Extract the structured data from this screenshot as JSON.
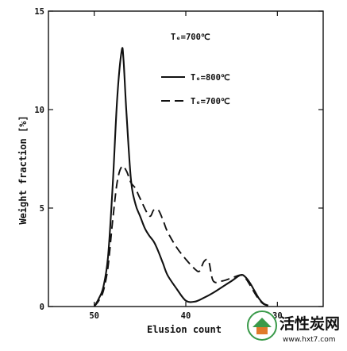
{
  "chart_data": {
    "type": "line",
    "xlabel": "Elusion count",
    "ylabel": "Weight fraction [%]",
    "xlim": [
      55,
      25
    ],
    "ylim": [
      0,
      15
    ],
    "x_ticks": [
      50,
      40,
      30
    ],
    "y_ticks": [
      0,
      5,
      10,
      15
    ],
    "annotation": "Tₑ=700℃",
    "grid": false,
    "legend_position": "top-right",
    "series": [
      {
        "name": "Tₑ=800℃",
        "style": "solid",
        "x": [
          50,
          49.5,
          49,
          48.5,
          48,
          47.5,
          47,
          46.8,
          46.5,
          46,
          45.5,
          45,
          44.5,
          44,
          43.5,
          43,
          42.5,
          42,
          41,
          40,
          39,
          38,
          37,
          36,
          35,
          34,
          33.5,
          33,
          32.5,
          32,
          31.5,
          31
        ],
        "y": [
          0,
          0.4,
          1,
          2.5,
          6,
          10.5,
          13,
          12.5,
          10,
          6.5,
          5.2,
          4.6,
          4.0,
          3.6,
          3.3,
          2.8,
          2.2,
          1.6,
          0.9,
          0.3,
          0.25,
          0.45,
          0.7,
          1.0,
          1.3,
          1.6,
          1.5,
          1.2,
          0.8,
          0.4,
          0.15,
          0.05
        ]
      },
      {
        "name": "Tₑ=700℃",
        "style": "dashed",
        "x": [
          50,
          49.5,
          49,
          48.5,
          48,
          47.5,
          47,
          46.5,
          46,
          45.5,
          45,
          44,
          43.5,
          43,
          42.5,
          42,
          41,
          40,
          39,
          38.5,
          38,
          37.5,
          37,
          36,
          35,
          34,
          33.5,
          33,
          32.5,
          32,
          31.5,
          31
        ],
        "y": [
          0,
          0.3,
          0.8,
          2,
          4.3,
          6.3,
          7.1,
          6.9,
          6.3,
          6.0,
          5.5,
          4.6,
          4.9,
          4.9,
          4.4,
          3.8,
          3.0,
          2.4,
          1.9,
          1.8,
          2.3,
          2.3,
          1.3,
          1.3,
          1.45,
          1.6,
          1.45,
          1.1,
          0.7,
          0.35,
          0.12,
          0.05
        ]
      }
    ]
  },
  "watermark": {
    "title": "活性炭网",
    "url": "www.hxt7.com",
    "icon": "tree-house-icon"
  }
}
